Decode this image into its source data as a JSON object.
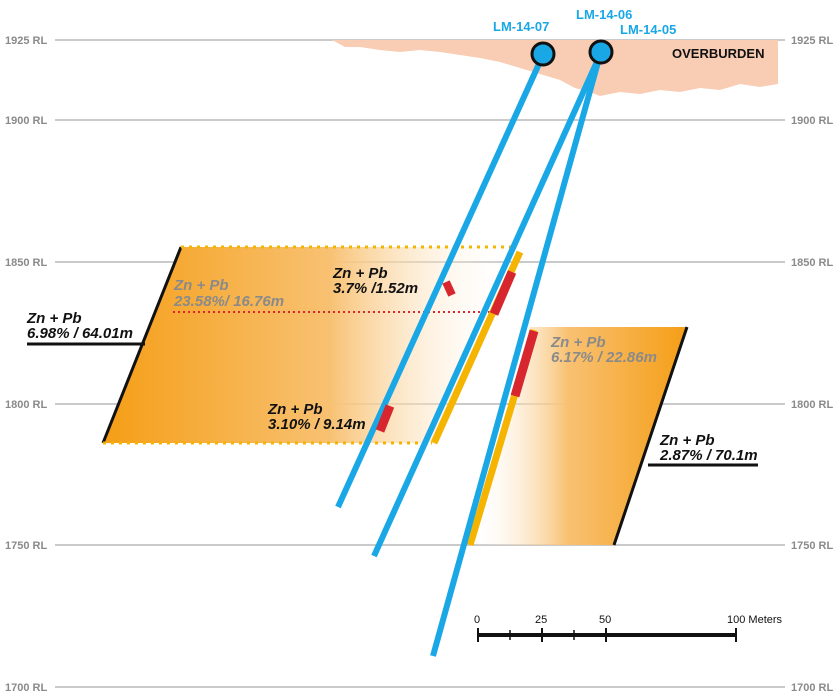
{
  "elevation_levels": [
    {
      "label": "1925 RL",
      "rl": 1925
    },
    {
      "label": "1900 RL",
      "rl": 1900
    },
    {
      "label": "1850 RL",
      "rl": 1850
    },
    {
      "label": "1800 RL",
      "rl": 1800
    },
    {
      "label": "1750 RL",
      "rl": 1750
    },
    {
      "label": "1700 RL",
      "rl": 1700
    }
  ],
  "overburden": {
    "label": "OVERBURDEN"
  },
  "drill_holes": [
    {
      "id": "LM-14-07",
      "label": "LM-14-07"
    },
    {
      "id": "LM-14-06",
      "label": "LM-14-06"
    },
    {
      "id": "LM-14-05",
      "label": "LM-14-05"
    }
  ],
  "intercepts": {
    "zone_a_title": "Zn + Pb",
    "zone_a_value": "6.98% / 64.01m",
    "zone_a_inner_title": "Zn + Pb",
    "zone_a_inner_value": "23.58%/ 16.76m",
    "upper_title": "Zn + Pb",
    "upper_value": "3.7% /1.52m",
    "lower_title": "Zn + Pb",
    "lower_value": "3.10% / 9.14m",
    "zone_b_inner_title": "Zn + Pb",
    "zone_b_inner_value": "6.17% / 22.86m",
    "zone_b_title": "Zn + Pb",
    "zone_b_value": "2.87% / 70.1m"
  },
  "scale_bar": {
    "ticks": [
      "0",
      "25",
      "50"
    ],
    "end_label": "100 Meters"
  },
  "colors": {
    "drill_trace": "#1aa7e6",
    "mineral_zone": "#f7a521",
    "high_grade": "#d7262e",
    "overburden": "#f9ccb4",
    "gridline": "#b9b9b9",
    "zone_edge": "#f5b400"
  }
}
